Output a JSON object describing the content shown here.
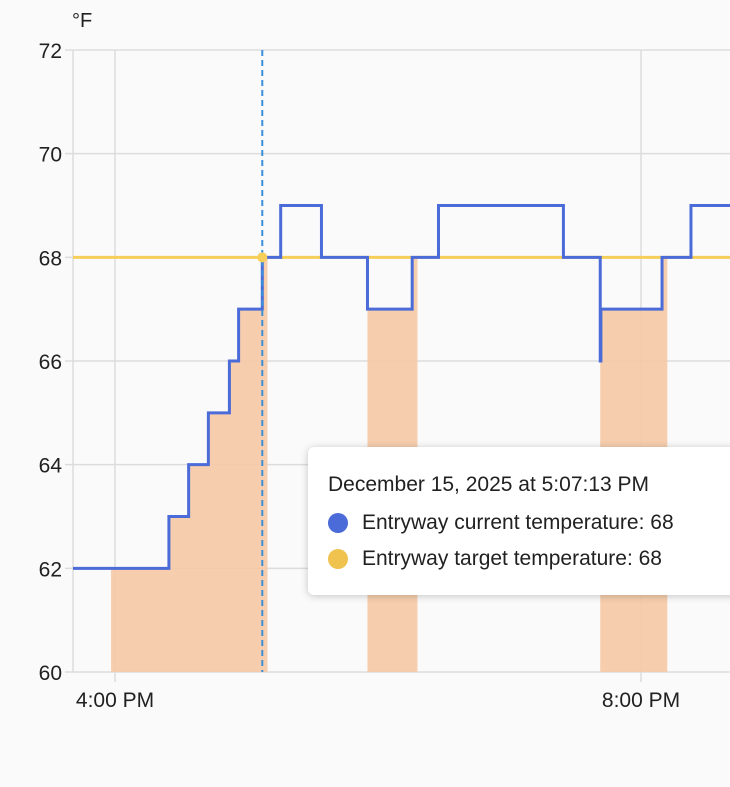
{
  "chart": {
    "unit_label": "°F",
    "colors": {
      "current": "#4b6bd8",
      "target": "#f5cf5a",
      "heating_fill": "#f5c9a5",
      "cursor": "#3a90d8",
      "grid": "#dcdcdc",
      "background": "#fafafa"
    },
    "x_tick_labels": [
      "4:00 PM",
      "8:00 PM"
    ],
    "y_tick_labels": [
      "60",
      "62",
      "64",
      "66",
      "68",
      "70",
      "72"
    ]
  },
  "tooltip": {
    "title": "December 15, 2025 at 5:07:13 PM",
    "rows": [
      {
        "label": "Entryway current temperature: 68",
        "color": "#4b6bd8"
      },
      {
        "label": "Entryway target temperature: 68",
        "color": "#f0c24e"
      }
    ]
  },
  "chart_data": {
    "type": "line",
    "title": "",
    "xlabel": "",
    "ylabel": "°F",
    "ylim": [
      60,
      72
    ],
    "x_unit": "hours since 4:00 PM",
    "x_ticks": [
      {
        "label": "4:00 PM",
        "x": 0
      },
      {
        "label": "8:00 PM",
        "x": 4
      }
    ],
    "xlim": [
      -0.32,
      4.68
    ],
    "grid": true,
    "legend": [
      "Entryway current temperature",
      "Entryway target temperature"
    ],
    "series": [
      {
        "name": "Entryway current temperature",
        "step": true,
        "points": [
          [
            -0.32,
            62
          ],
          [
            0.41,
            63
          ],
          [
            0.56,
            64
          ],
          [
            0.71,
            65
          ],
          [
            0.87,
            66
          ],
          [
            0.94,
            67
          ],
          [
            1.12,
            68
          ],
          [
            1.26,
            69
          ],
          [
            1.57,
            68
          ],
          [
            1.92,
            67
          ],
          [
            2.26,
            68
          ],
          [
            2.46,
            69
          ],
          [
            3.41,
            68
          ],
          [
            3.69,
            66
          ],
          [
            3.695,
            67
          ],
          [
            4.16,
            68
          ],
          [
            4.38,
            69
          ],
          [
            4.68,
            69
          ]
        ]
      },
      {
        "name": "Entryway target temperature",
        "step": true,
        "points": [
          [
            -0.32,
            68
          ],
          [
            4.68,
            68
          ]
        ]
      }
    ],
    "heating_periods": [
      [
        -0.03,
        1.16
      ],
      [
        1.92,
        2.3
      ],
      [
        3.69,
        4.2
      ]
    ],
    "cursor": {
      "x": 1.12,
      "label": "December 15, 2025 at 5:07:13 PM",
      "current": 68,
      "target": 68
    }
  }
}
